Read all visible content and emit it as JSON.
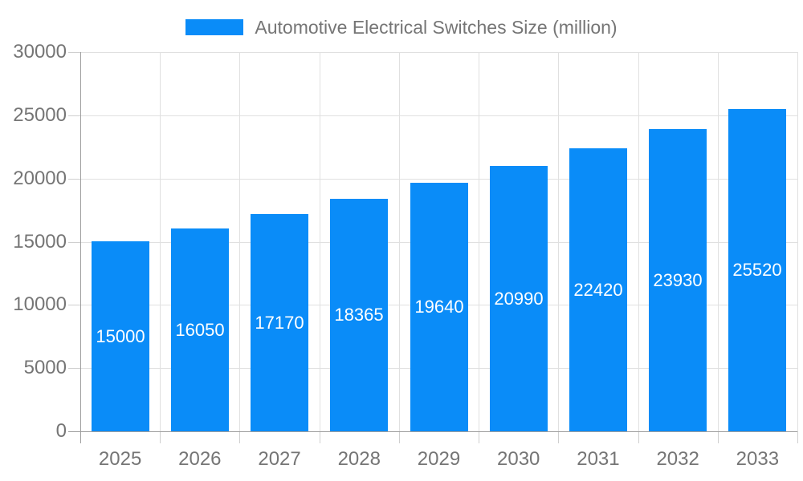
{
  "chart_data": {
    "type": "bar",
    "title": "Automotive Electrical Switches Size (million)",
    "categories": [
      "2025",
      "2026",
      "2027",
      "2028",
      "2029",
      "2030",
      "2031",
      "2032",
      "2033"
    ],
    "values": [
      15000,
      16050,
      17170,
      18365,
      19640,
      20990,
      22420,
      23930,
      25520
    ],
    "value_labels": [
      "15000",
      "16050",
      "17170",
      "18365",
      "19640",
      "20990",
      "22420",
      "23930",
      "25520"
    ],
    "ytick_labels": [
      "0",
      "5000",
      "10000",
      "15000",
      "20000",
      "25000",
      "30000"
    ],
    "yticks": [
      0,
      5000,
      10000,
      15000,
      20000,
      25000,
      30000
    ],
    "ylim": [
      0,
      30000
    ],
    "xlabel": "",
    "ylabel": "",
    "grid": true,
    "legend_position": "top-center",
    "colors": {
      "bar": "#0a8cf8",
      "axis_text": "#757575",
      "axis_line": "#9e9e9e",
      "gridline": "#e0e0e0",
      "tick": "#cfcfcf",
      "value_label": "#ffffff",
      "background": "#ffffff"
    }
  }
}
